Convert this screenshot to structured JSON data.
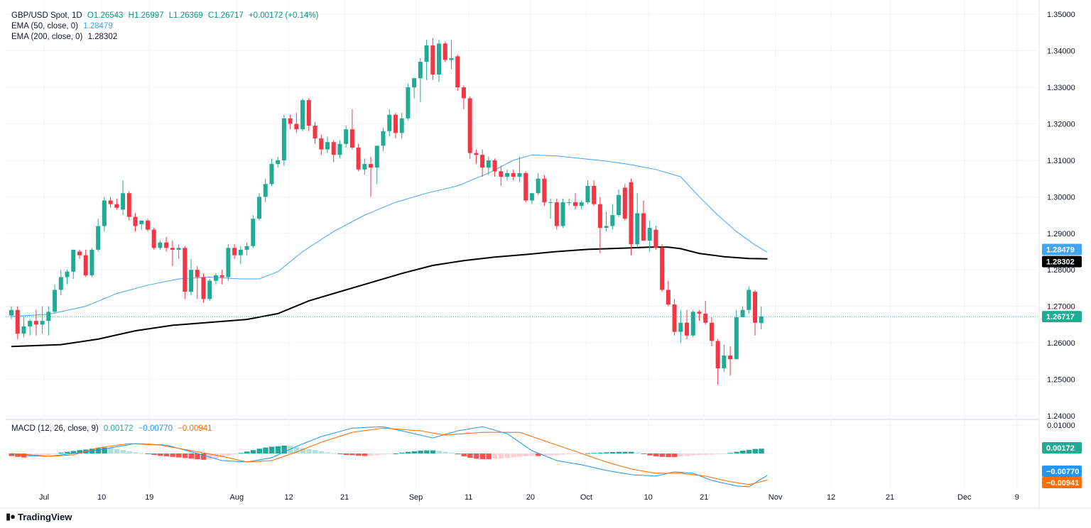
{
  "header": {
    "symbol": "GBP/USD Spot, 1D",
    "open": "O1.26543",
    "high": "H1.26997",
    "low": "L1.26369",
    "close": "C1.26717",
    "change": "+0.00172 (+0.14%)"
  },
  "ema50": {
    "label": "EMA (50, close, 0)",
    "value": "1.28479"
  },
  "ema200": {
    "label": "EMA (200, close, 0)",
    "value": "1.28302"
  },
  "macd": {
    "label": "MACD (12, 26, close, 9)",
    "hist_value": "0.00172",
    "macd_value": "−0.00770",
    "signal_value": "−0.00941"
  },
  "brand": {
    "name": "TradingView"
  },
  "colors": {
    "up": "#22ab94",
    "down": "#f23645",
    "ema50": "#42a5f5",
    "ema200": "#000000",
    "macd": "#2196f3",
    "signal": "#ff6d00"
  },
  "chart_data": {
    "type": "candlestick",
    "title": "GBP/USD Spot, 1D",
    "ylim": [
      1.2392,
      1.3516
    ],
    "y_ticks": [
      "1.35000",
      "1.34000",
      "1.33000",
      "1.32000",
      "1.31000",
      "1.30000",
      "1.29000",
      "1.28000",
      "1.27000",
      "1.26000",
      "1.25000",
      "1.24000"
    ],
    "x_ticks": [
      "Jul",
      "10",
      "19",
      "Aug",
      "12",
      "21",
      "Sep",
      "11",
      "20",
      "Oct",
      "10",
      "21",
      "Nov",
      "12",
      "21",
      "Dec",
      "9"
    ],
    "last_price": "1.26717",
    "ema50_label": "1.28479",
    "ema200_label": "1.28302",
    "candles": [
      [
        1.2675,
        1.27,
        1.2665,
        1.269
      ],
      [
        1.269,
        1.27,
        1.261,
        1.2625
      ],
      [
        1.2625,
        1.267,
        1.2615,
        1.2645
      ],
      [
        1.2645,
        1.2665,
        1.262,
        1.266
      ],
      [
        1.266,
        1.269,
        1.262,
        1.265
      ],
      [
        1.265,
        1.27,
        1.2625,
        1.266
      ],
      [
        1.266,
        1.27,
        1.262,
        1.2685
      ],
      [
        1.2685,
        1.276,
        1.268,
        1.2745
      ],
      [
        1.2745,
        1.28,
        1.273,
        1.278
      ],
      [
        1.278,
        1.28,
        1.276,
        1.2795
      ],
      [
        1.2795,
        1.2845,
        1.2775,
        1.2855
      ],
      [
        1.285,
        1.2855,
        1.283,
        1.284
      ],
      [
        1.284,
        1.2855,
        1.278,
        1.2785
      ],
      [
        1.2785,
        1.286,
        1.278,
        1.2855
      ],
      [
        1.2855,
        1.294,
        1.285,
        1.292
      ],
      [
        1.292,
        1.3,
        1.2905,
        1.299
      ],
      [
        1.299,
        1.3,
        1.297,
        1.298
      ],
      [
        1.298,
        1.2995,
        1.2965,
        1.297
      ],
      [
        1.2965,
        1.3045,
        1.295,
        1.301
      ],
      [
        1.301,
        1.3015,
        1.2935,
        1.2945
      ],
      [
        1.2945,
        1.2955,
        1.2905,
        1.292
      ],
      [
        1.2925,
        1.2935,
        1.291,
        1.2935
      ],
      [
        1.2935,
        1.294,
        1.2905,
        1.291
      ],
      [
        1.291,
        1.2915,
        1.2855,
        1.286
      ],
      [
        1.286,
        1.288,
        1.2855,
        1.2875
      ],
      [
        1.2875,
        1.289,
        1.285,
        1.286
      ],
      [
        1.286,
        1.288,
        1.281,
        1.2855
      ],
      [
        1.2855,
        1.287,
        1.283,
        1.286
      ],
      [
        1.286,
        1.2865,
        1.272,
        1.274
      ],
      [
        1.274,
        1.283,
        1.273,
        1.28
      ],
      [
        1.28,
        1.281,
        1.272,
        1.278
      ],
      [
        1.278,
        1.279,
        1.271,
        1.272
      ],
      [
        1.272,
        1.2775,
        1.2715,
        1.277
      ],
      [
        1.277,
        1.279,
        1.276,
        1.2785
      ],
      [
        1.2785,
        1.28,
        1.276,
        1.278
      ],
      [
        1.278,
        1.287,
        1.277,
        1.286
      ],
      [
        1.286,
        1.287,
        1.283,
        1.284
      ],
      [
        1.284,
        1.2865,
        1.2815,
        1.2855
      ],
      [
        1.2855,
        1.2875,
        1.284,
        1.2865
      ],
      [
        1.2865,
        1.295,
        1.286,
        1.294
      ],
      [
        1.294,
        1.301,
        1.2935,
        1.3
      ],
      [
        1.3,
        1.305,
        1.2985,
        1.3035
      ],
      [
        1.3035,
        1.3105,
        1.303,
        1.309
      ],
      [
        1.309,
        1.311,
        1.308,
        1.31
      ],
      [
        1.31,
        1.3225,
        1.3085,
        1.3215
      ],
      [
        1.3215,
        1.3225,
        1.3185,
        1.32
      ],
      [
        1.32,
        1.323,
        1.3175,
        1.3185
      ],
      [
        1.3185,
        1.327,
        1.318,
        1.3265
      ],
      [
        1.3265,
        1.327,
        1.318,
        1.3195
      ],
      [
        1.3195,
        1.3205,
        1.3145,
        1.316
      ],
      [
        1.316,
        1.317,
        1.3115,
        1.313
      ],
      [
        1.313,
        1.3165,
        1.312,
        1.315
      ],
      [
        1.315,
        1.3155,
        1.3095,
        1.3115
      ],
      [
        1.3115,
        1.3155,
        1.3105,
        1.3145
      ],
      [
        1.3145,
        1.3195,
        1.3135,
        1.3185
      ],
      [
        1.3185,
        1.324,
        1.313,
        1.3135
      ],
      [
        1.3135,
        1.3145,
        1.307,
        1.3075
      ],
      [
        1.3075,
        1.3105,
        1.306,
        1.309
      ],
      [
        1.309,
        1.311,
        1.3,
        1.308
      ],
      [
        1.308,
        1.314,
        1.3035,
        1.314
      ],
      [
        1.314,
        1.319,
        1.3125,
        1.318
      ],
      [
        1.318,
        1.324,
        1.3165,
        1.3225
      ],
      [
        1.3225,
        1.323,
        1.316,
        1.3175
      ],
      [
        1.3175,
        1.323,
        1.316,
        1.3215
      ],
      [
        1.3215,
        1.331,
        1.321,
        1.33
      ],
      [
        1.33,
        1.3325,
        1.327,
        1.3325
      ],
      [
        1.3325,
        1.338,
        1.326,
        1.337
      ],
      [
        1.337,
        1.343,
        1.332,
        1.3415
      ],
      [
        1.3415,
        1.3435,
        1.332,
        1.3335
      ],
      [
        1.3335,
        1.343,
        1.3315,
        1.342
      ],
      [
        1.342,
        1.3425,
        1.337,
        1.3375
      ],
      [
        1.3375,
        1.343,
        1.335,
        1.338
      ],
      [
        1.3385,
        1.339,
        1.329,
        1.33
      ],
      [
        1.33,
        1.3305,
        1.324,
        1.327
      ],
      [
        1.327,
        1.3275,
        1.3105,
        1.312
      ],
      [
        1.312,
        1.313,
        1.309,
        1.3115
      ],
      [
        1.3115,
        1.313,
        1.3055,
        1.308
      ],
      [
        1.308,
        1.311,
        1.306,
        1.31
      ],
      [
        1.31,
        1.3105,
        1.3055,
        1.307
      ],
      [
        1.307,
        1.3085,
        1.303,
        1.3055
      ],
      [
        1.3055,
        1.3075,
        1.3045,
        1.3065
      ],
      [
        1.3065,
        1.3075,
        1.3045,
        1.3055
      ],
      [
        1.3055,
        1.311,
        1.304,
        1.3065
      ],
      [
        1.3065,
        1.307,
        1.2985,
        1.299
      ],
      [
        1.299,
        1.301,
        1.298,
        1.301
      ],
      [
        1.301,
        1.3065,
        1.3005,
        1.305
      ],
      [
        1.305,
        1.306,
        1.2975,
        1.2985
      ],
      [
        1.2985,
        1.2995,
        1.294,
        1.2985
      ],
      [
        1.2985,
        1.2995,
        1.291,
        1.292
      ],
      [
        1.292,
        1.2995,
        1.2915,
        1.2985
      ],
      [
        1.2985,
        1.2995,
        1.2975,
        1.2985
      ],
      [
        1.2985,
        1.301,
        1.2965,
        1.2975
      ],
      [
        1.2975,
        1.299,
        1.2965,
        1.2985
      ],
      [
        1.2985,
        1.3045,
        1.298,
        1.303
      ],
      [
        1.303,
        1.3045,
        1.2975,
        1.298
      ],
      [
        1.298,
        1.3,
        1.2845,
        1.2915
      ],
      [
        1.2915,
        1.296,
        1.2905,
        1.292
      ],
      [
        1.292,
        1.298,
        1.291,
        1.295
      ],
      [
        1.295,
        1.302,
        1.2945,
        1.3005
      ],
      [
        1.3025,
        1.3035,
        1.2935,
        1.294
      ],
      [
        1.304,
        1.305,
        1.284,
        1.287
      ],
      [
        1.287,
        1.301,
        1.286,
        1.2955
      ],
      [
        1.2955,
        1.299,
        1.2885,
        1.288
      ],
      [
        1.288,
        1.2935,
        1.285,
        1.2915
      ],
      [
        1.291,
        1.292,
        1.2855,
        1.286
      ],
      [
        1.286,
        1.287,
        1.274,
        1.2745
      ],
      [
        1.2745,
        1.277,
        1.27,
        1.2705
      ],
      [
        1.2705,
        1.272,
        1.262,
        1.263
      ],
      [
        1.263,
        1.269,
        1.26,
        1.2655
      ],
      [
        1.2655,
        1.269,
        1.261,
        1.262
      ],
      [
        1.262,
        1.269,
        1.2615,
        1.2685
      ],
      [
        1.2685,
        1.269,
        1.266,
        1.268
      ],
      [
        1.268,
        1.2715,
        1.265,
        1.2655
      ],
      [
        1.2655,
        1.267,
        1.259,
        1.2605
      ],
      [
        1.2605,
        1.261,
        1.2485,
        1.253
      ],
      [
        1.253,
        1.2595,
        1.252,
        1.2565
      ],
      [
        1.2565,
        1.259,
        1.251,
        1.2555
      ],
      [
        1.2555,
        1.269,
        1.2555,
        1.267
      ],
      [
        1.267,
        1.27,
        1.267,
        1.269
      ],
      [
        1.269,
        1.2755,
        1.268,
        1.2745
      ],
      [
        1.274,
        1.2745,
        1.262,
        1.2655
      ],
      [
        1.2654,
        1.27,
        1.2637,
        1.2672
      ]
    ],
    "ema50_points": [
      [
        0,
        1.2672
      ],
      [
        6,
        1.2678
      ],
      [
        12,
        1.27
      ],
      [
        17,
        1.2735
      ],
      [
        22,
        1.2758
      ],
      [
        27,
        1.2775
      ],
      [
        32,
        1.278
      ],
      [
        37,
        1.2775
      ],
      [
        40,
        1.2775
      ],
      [
        43,
        1.2795
      ],
      [
        47,
        1.285
      ],
      [
        52,
        1.2905
      ],
      [
        57,
        1.295
      ],
      [
        62,
        1.2985
      ],
      [
        67,
        1.301
      ],
      [
        72,
        1.303
      ],
      [
        77,
        1.3065
      ],
      [
        81,
        1.31
      ],
      [
        84,
        1.3115
      ],
      [
        88,
        1.3112
      ],
      [
        92,
        1.3105
      ],
      [
        96,
        1.3098
      ],
      [
        100,
        1.3088
      ],
      [
        104,
        1.3075
      ],
      [
        108,
        1.3055
      ],
      [
        111,
        1.3
      ],
      [
        114,
        1.295
      ],
      [
        117,
        1.2905
      ],
      [
        120,
        1.2868
      ],
      [
        122,
        1.2848
      ]
    ],
    "ema200_points": [
      [
        0,
        1.259
      ],
      [
        8,
        1.2595
      ],
      [
        14,
        1.261
      ],
      [
        20,
        1.2633
      ],
      [
        26,
        1.2648
      ],
      [
        32,
        1.2656
      ],
      [
        38,
        1.2664
      ],
      [
        43,
        1.268
      ],
      [
        48,
        1.2715
      ],
      [
        53,
        1.274
      ],
      [
        58,
        1.2765
      ],
      [
        63,
        1.279
      ],
      [
        68,
        1.2812
      ],
      [
        73,
        1.2825
      ],
      [
        78,
        1.2835
      ],
      [
        83,
        1.2842
      ],
      [
        88,
        1.285
      ],
      [
        93,
        1.2856
      ],
      [
        98,
        1.2859
      ],
      [
        103,
        1.2862
      ],
      [
        106,
        1.2862
      ],
      [
        108,
        1.2858
      ],
      [
        111,
        1.2845
      ],
      [
        115,
        1.2836
      ],
      [
        119,
        1.2831
      ],
      [
        122,
        1.283
      ]
    ],
    "macd_ylim": [
      -0.0128,
      0.0118
    ],
    "macd_y_ticks": [
      "0.01000"
    ],
    "macd_hist": [
      -0.0009,
      -0.0012,
      -0.0014,
      -0.0013,
      -0.0011,
      -0.0008,
      -0.0005,
      -0.0001,
      0.0003,
      0.0006,
      0.0009,
      0.0012,
      0.0014,
      0.0017,
      0.0019,
      0.0021,
      0.002,
      0.0016,
      0.0012,
      0.0008,
      0.0004,
      0.0001,
      -0.0002,
      -0.0005,
      -0.0008,
      -0.001,
      -0.0012,
      -0.0014,
      -0.0016,
      -0.0018,
      -0.002,
      -0.0022,
      -0.002,
      -0.0017,
      -0.0014,
      -0.0008,
      -0.0003,
      0.0002,
      0.0007,
      0.0012,
      0.0017,
      0.0021,
      0.0024,
      0.0026,
      0.0028,
      0.0027,
      0.0023,
      0.0019,
      0.0015,
      0.0012,
      0.0008,
      0.0004,
      0.0001,
      -0.0002,
      -0.0005,
      -0.0006,
      -0.0008,
      -0.0009,
      -0.0008,
      -0.0006,
      -0.0004,
      -0.0002,
      0.0,
      0.0003,
      0.0006,
      0.0008,
      0.001,
      0.0011,
      0.0011,
      0.0009,
      0.0006,
      0.0003,
      -0.0003,
      -0.001,
      -0.0015,
      -0.0018,
      -0.002,
      -0.002,
      -0.0019,
      -0.0018,
      -0.0016,
      -0.0014,
      -0.0012,
      -0.001,
      -0.0009,
      -0.0009,
      -0.0008,
      -0.0007,
      -0.0006,
      -0.0004,
      -0.0003,
      -0.0002,
      -0.0001,
      0.0001,
      0.0002,
      0.0003,
      0.0004,
      0.0005,
      0.0006,
      0.0006,
      0.0006,
      0.0003,
      -0.0002,
      -0.0007,
      -0.001,
      -0.0012,
      -0.0013,
      -0.0013,
      -0.0011,
      -0.0009,
      -0.0007,
      -0.0006,
      -0.0005,
      -0.0004,
      -0.0003,
      -0.0001,
      0.0002,
      0.0006,
      0.001,
      0.0013,
      0.0016,
      0.0017
    ],
    "macd_points": [
      [
        0,
        -0.0005
      ],
      [
        6,
        -0.001
      ],
      [
        12,
        0.0005
      ],
      [
        16,
        0.002
      ],
      [
        20,
        0.0035
      ],
      [
        25,
        0.003
      ],
      [
        30,
        0.0
      ],
      [
        34,
        -0.0025
      ],
      [
        38,
        -0.003
      ],
      [
        42,
        -0.0015
      ],
      [
        46,
        0.0025
      ],
      [
        50,
        0.006
      ],
      [
        55,
        0.009
      ],
      [
        60,
        0.0095
      ],
      [
        65,
        0.007
      ],
      [
        68,
        0.0055
      ],
      [
        72,
        0.008
      ],
      [
        76,
        0.0095
      ],
      [
        80,
        0.007
      ],
      [
        84,
        0.001
      ],
      [
        88,
        -0.0025
      ],
      [
        92,
        -0.004
      ],
      [
        96,
        -0.006
      ],
      [
        100,
        -0.0075
      ],
      [
        104,
        -0.008
      ],
      [
        107,
        -0.0065
      ],
      [
        110,
        -0.007
      ],
      [
        113,
        -0.0095
      ],
      [
        117,
        -0.0115
      ],
      [
        119,
        -0.0118
      ],
      [
        121,
        -0.009
      ],
      [
        122,
        -0.0077
      ]
    ],
    "signal_points": [
      [
        0,
        0.0
      ],
      [
        6,
        -0.001
      ],
      [
        10,
        -0.0005
      ],
      [
        14,
        0.002
      ],
      [
        19,
        0.0035
      ],
      [
        24,
        0.003
      ],
      [
        29,
        0.001
      ],
      [
        34,
        -0.001
      ],
      [
        38,
        -0.003
      ],
      [
        42,
        -0.0025
      ],
      [
        46,
        0.0005
      ],
      [
        50,
        0.004
      ],
      [
        55,
        0.0075
      ],
      [
        60,
        0.009
      ],
      [
        66,
        0.008
      ],
      [
        70,
        0.0065
      ],
      [
        76,
        0.0075
      ],
      [
        82,
        0.0075
      ],
      [
        88,
        0.003
      ],
      [
        92,
        0.0
      ],
      [
        96,
        -0.003
      ],
      [
        100,
        -0.0055
      ],
      [
        104,
        -0.007
      ],
      [
        108,
        -0.007
      ],
      [
        112,
        -0.008
      ],
      [
        116,
        -0.01
      ],
      [
        119,
        -0.011
      ],
      [
        122,
        -0.0094
      ]
    ]
  }
}
